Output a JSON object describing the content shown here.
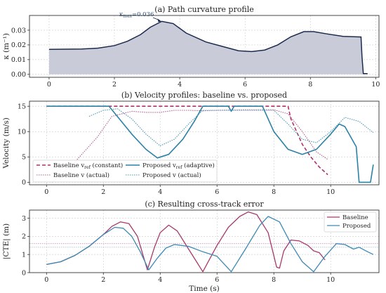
{
  "chart_data": [
    {
      "id": "a",
      "type": "area",
      "title": "(a) Path curvature profile",
      "xlabel": "",
      "ylabel": "κ (m⁻¹)",
      "xlim": [
        -0.6,
        10.1
      ],
      "ylim": [
        -0.002,
        0.04
      ],
      "xticks": [
        0,
        2,
        4,
        6,
        8,
        10
      ],
      "yticks": [
        0.0,
        0.01,
        0.02,
        0.03
      ],
      "ytick_labels": [
        "0.00",
        "0.01",
        "0.02",
        "0.03"
      ],
      "grid": true,
      "colors": {
        "line": "#1c2a4e",
        "fill": "#c9cbd8"
      },
      "annotation": {
        "text": "κmax=0.036",
        "base": "κ",
        "sub": "max",
        "value": "=0.036",
        "x": 3.45,
        "y": 0.036,
        "text_x": 2.15,
        "text_y": 0.0395
      },
      "series": [
        {
          "values_x": [
            0,
            0.5,
            1.0,
            1.5,
            2.0,
            2.4,
            2.8,
            3.1,
            3.45,
            3.8,
            4.2,
            4.8,
            5.3,
            5.8,
            6.2,
            6.6,
            7.0,
            7.4,
            7.8,
            8.1,
            8.5,
            9.0,
            9.4,
            9.55,
            9.58,
            9.62,
            9.75
          ],
          "values_y": [
            0.017,
            0.0171,
            0.0172,
            0.0178,
            0.0195,
            0.0225,
            0.027,
            0.032,
            0.036,
            0.0345,
            0.028,
            0.022,
            0.019,
            0.016,
            0.0155,
            0.0165,
            0.02,
            0.0255,
            0.029,
            0.029,
            0.0275,
            0.0258,
            0.0255,
            0.0254,
            0.012,
            0.0005,
            0.0005
          ]
        }
      ]
    },
    {
      "id": "b",
      "type": "line",
      "title": "(b) Velocity profiles: baseline vs. proposed",
      "xlabel": "",
      "ylabel": "Velocity (m/s)",
      "xlim": [
        -0.6,
        11.7
      ],
      "ylim": [
        -0.5,
        16
      ],
      "xticks": [
        0,
        2,
        4,
        6,
        8,
        10
      ],
      "yticks": [
        0,
        5,
        10,
        15
      ],
      "grid": true,
      "legend_position": "lower-left",
      "series": [
        {
          "name": "Baseline vref (constant)",
          "legend": {
            "base": "Baseline v",
            "sub": "ref",
            "tail": " (constant)"
          },
          "color": "#b0306a",
          "dash": "5 3",
          "width": 1.6,
          "x": [
            0,
            2.2,
            4.0,
            6.0,
            8.5,
            8.6,
            8.8,
            9.0,
            9.3,
            9.6,
            9.9
          ],
          "y": [
            15,
            15,
            15,
            15,
            15,
            12.5,
            10,
            7.5,
            5,
            3,
            1.5
          ]
        },
        {
          "name": "Baseline v (actual)",
          "legend": {
            "base": "Baseline v",
            "sub": "",
            "tail": " (actual)"
          },
          "color": "#b06090",
          "dash": "1.5 1.5",
          "width": 1.1,
          "x": [
            0.2,
            1.0,
            1.8,
            2.3,
            3.0,
            3.5,
            4.0,
            4.5,
            5.0,
            5.5,
            6.0,
            7.0,
            8.0,
            8.5,
            9.0,
            9.5,
            9.9
          ],
          "y": [
            0,
            4,
            9,
            13,
            14,
            13.8,
            13.8,
            14.2,
            14.2,
            14.1,
            14.2,
            14.3,
            14.3,
            13.5,
            10,
            6,
            4.5
          ]
        },
        {
          "name": "Proposed vref (adaptive)",
          "legend": {
            "base": "Proposed v",
            "sub": "ref",
            "tail": " (adaptive)"
          },
          "color": "#2a82a6",
          "dash": "",
          "width": 1.6,
          "x": [
            0,
            2.2,
            3.0,
            3.5,
            3.9,
            4.3,
            4.8,
            5.2,
            5.5,
            6.0,
            6.4,
            6.5,
            6.6,
            7.0,
            7.6,
            8.0,
            8.5,
            9.0,
            9.5,
            10.0,
            10.3,
            10.5,
            10.9,
            11.0,
            11.1,
            11.4,
            11.5
          ],
          "y": [
            15,
            15,
            9.5,
            6.5,
            4.8,
            5.5,
            8.5,
            12,
            15,
            15,
            15,
            14,
            15,
            15,
            15,
            10,
            6.5,
            5.5,
            6.5,
            9.5,
            11.5,
            11,
            7,
            0,
            0,
            0,
            3.5
          ]
        },
        {
          "name": "Proposed v (actual)",
          "legend": {
            "base": "Proposed v",
            "sub": "",
            "tail": " (actual)"
          },
          "color": "#4c98b6",
          "dash": "1.5 1.5",
          "width": 1.1,
          "x": [
            1.5,
            2.0,
            2.5,
            3.0,
            3.5,
            4.0,
            4.5,
            5.0,
            5.5,
            6.0,
            7.0,
            8.0,
            8.5,
            9.0,
            9.5,
            10.0,
            10.5,
            11.0,
            11.5
          ],
          "y": [
            13,
            14.2,
            14.5,
            12.5,
            9.5,
            7.2,
            8.5,
            11.5,
            14.2,
            14.2,
            14.2,
            14.2,
            11.5,
            8.5,
            7.8,
            10,
            12.8,
            12,
            9.8
          ]
        }
      ]
    },
    {
      "id": "c",
      "type": "line",
      "title": "(c) Resulting cross-track error",
      "xlabel": "Time (s)",
      "ylabel": "|CTE| (m)",
      "xlim": [
        -0.6,
        11.7
      ],
      "ylim": [
        0,
        3.45
      ],
      "xticks": [
        0,
        2,
        4,
        6,
        8,
        10
      ],
      "yticks": [
        0,
        1,
        2,
        3
      ],
      "grid": true,
      "legend_position": "upper-right",
      "hlines": [
        {
          "y": 1.6,
          "color": "#c27aa2"
        },
        {
          "y": 1.4,
          "color": "#8fb8cc"
        }
      ],
      "series": [
        {
          "name": "Baseline",
          "color": "#a8386a",
          "dash": "",
          "width": 1.3,
          "x": [
            0,
            0.5,
            1.0,
            1.5,
            2.0,
            2.3,
            2.6,
            2.9,
            3.2,
            3.55,
            3.8,
            4.0,
            4.3,
            4.6,
            5.0,
            5.5,
            6.0,
            6.4,
            6.8,
            7.1,
            7.4,
            7.8,
            8.1,
            8.2,
            8.35,
            8.6,
            8.9,
            9.2,
            9.4,
            9.6,
            9.8
          ],
          "y": [
            0.45,
            0.6,
            0.95,
            1.45,
            2.1,
            2.55,
            2.8,
            2.7,
            2.0,
            0.15,
            1.4,
            2.2,
            2.62,
            2.3,
            1.3,
            0.05,
            1.5,
            2.5,
            3.1,
            3.35,
            3.2,
            2.2,
            0.3,
            0.25,
            1.2,
            1.8,
            1.75,
            1.5,
            1.2,
            1.1,
            0.7
          ]
        },
        {
          "name": "Proposed",
          "color": "#3d8ab3",
          "dash": "",
          "width": 1.3,
          "x": [
            0,
            0.5,
            1.0,
            1.5,
            2.0,
            2.4,
            2.7,
            3.0,
            3.3,
            3.6,
            3.9,
            4.2,
            4.5,
            5.0,
            5.5,
            6.0,
            6.5,
            7.0,
            7.5,
            7.8,
            8.2,
            8.6,
            9.0,
            9.4,
            9.8,
            10.2,
            10.5,
            10.8,
            11.0,
            11.3,
            11.5
          ],
          "y": [
            0.45,
            0.6,
            0.95,
            1.45,
            2.1,
            2.5,
            2.45,
            2.0,
            1.15,
            0.15,
            0.8,
            1.35,
            1.55,
            1.45,
            1.15,
            0.9,
            0.05,
            1.3,
            2.6,
            3.1,
            2.8,
            1.6,
            0.6,
            0.05,
            0.9,
            1.6,
            1.55,
            1.3,
            1.4,
            1.15,
            1.0
          ]
        }
      ]
    }
  ]
}
